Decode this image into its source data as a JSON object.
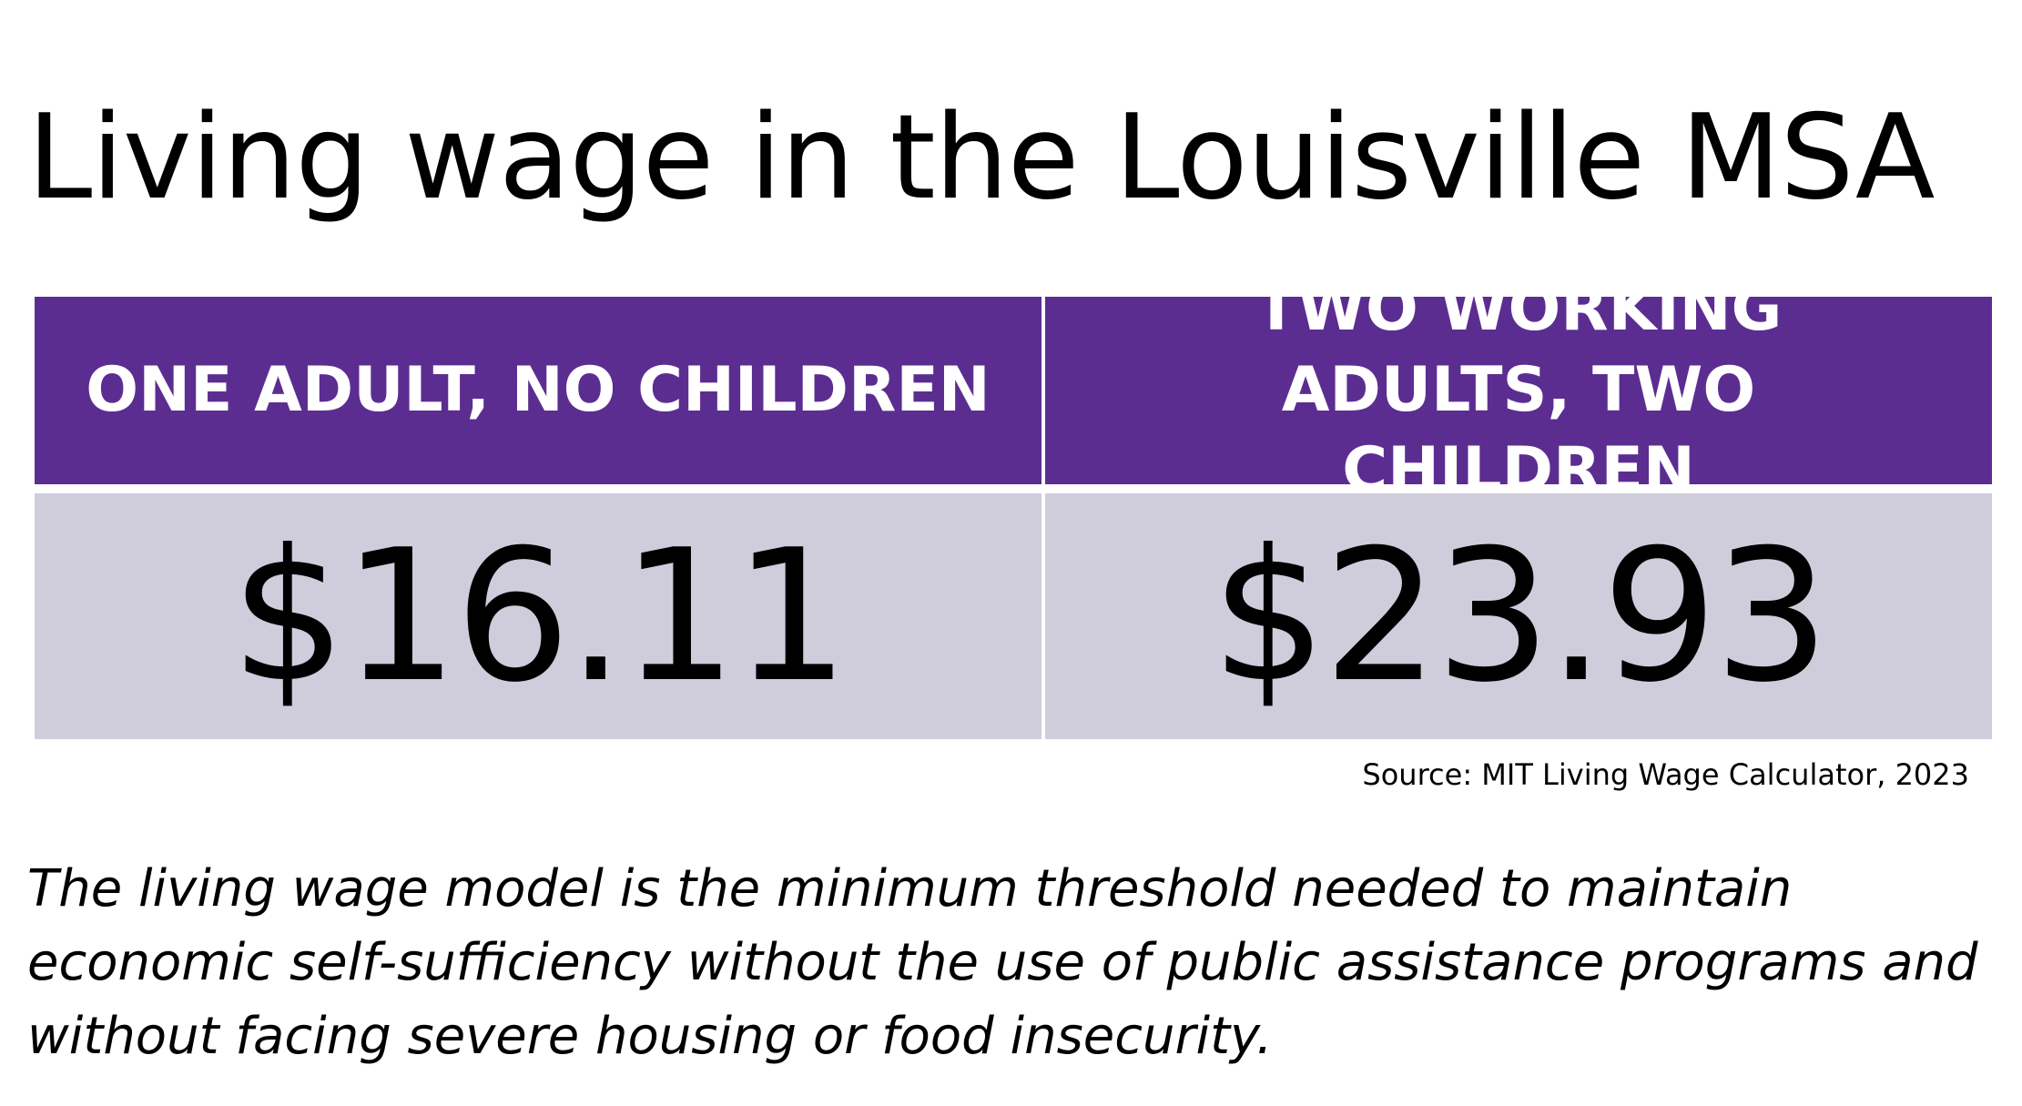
{
  "title": "Living wage in the Louisville MSA",
  "table": {
    "columns": [
      {
        "header": "ONE ADULT, NO CHILDREN",
        "value": "$16.11"
      },
      {
        "header": "TWO WORKING ADULTS, TWO CHILDREN",
        "value": "$23.93"
      }
    ]
  },
  "source": "Source: MIT Living Wage Calculator, 2023",
  "description": "The living wage model is the minimum threshold needed to maintain economic self-sufficiency without the use of public assistance programs and without facing severe housing or food insecurity.",
  "colors": {
    "header_bg": "#5c2d91",
    "value_bg": "#cfccdb",
    "header_text": "#ffffff",
    "body_text": "#000000"
  }
}
